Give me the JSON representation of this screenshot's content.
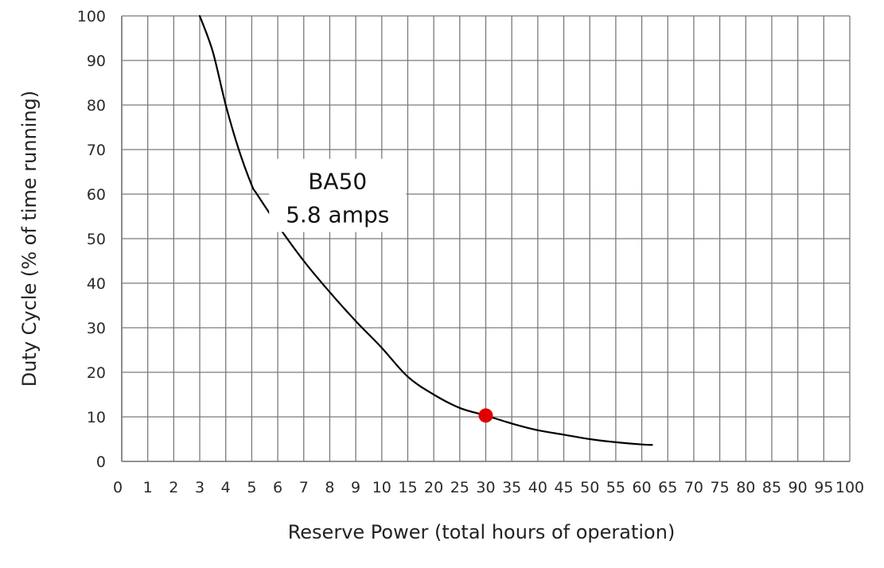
{
  "chart_data": {
    "type": "line",
    "title": "",
    "xlabel": "Reserve Power (total hours of operation)",
    "ylabel": "Duty Cycle (% of time running)",
    "x_tick_labels": [
      "0",
      "1",
      "2",
      "3",
      "4",
      "5",
      "6",
      "7",
      "8",
      "9",
      "10",
      "15",
      "20",
      "25",
      "30",
      "35",
      "40",
      "45",
      "50",
      "55",
      "60",
      "65",
      "70",
      "75",
      "80",
      "85",
      "90",
      "95",
      "100"
    ],
    "y_ticks": [
      0,
      10,
      20,
      30,
      40,
      50,
      60,
      70,
      80,
      90,
      100
    ],
    "ylim": [
      0,
      100
    ],
    "grid": true,
    "series": [
      {
        "name": "",
        "x": [
          3,
          3.5,
          4,
          4.5,
          5,
          5.2,
          6,
          7,
          8,
          9,
          10,
          15,
          20,
          25,
          30,
          35,
          40,
          45,
          50,
          55,
          60,
          62
        ],
        "y": [
          100,
          92,
          80,
          70,
          62,
          60,
          53,
          45,
          38,
          31.5,
          25.5,
          19,
          15,
          12,
          10.3,
          8.5,
          7,
          6,
          5,
          4.3,
          3.8,
          3.7
        ]
      }
    ],
    "highlight_point": {
      "x": 30,
      "y": 10.3,
      "color": "#e00000"
    },
    "annotation": {
      "lines": [
        "BA50",
        "5.8 amps"
      ],
      "x": 8.3,
      "y": 59
    }
  }
}
